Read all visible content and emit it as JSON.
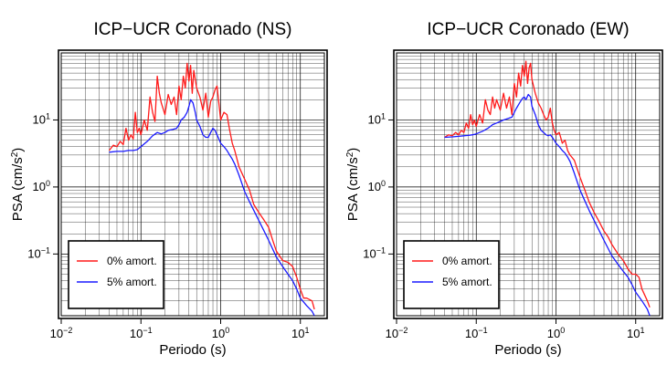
{
  "colors": {
    "undamped": "#ff1a1a",
    "damped": "#1a1aff",
    "grid": "#000000",
    "frame": "#000000"
  },
  "chart_data": [
    {
      "type": "line",
      "title": "ICP−UCR Coronado (NS)",
      "xlabel": "Periodo (s)",
      "ylabel_main": "PSA (cm/s",
      "ylabel_sup": "2",
      "ylabel_close": ")",
      "xscale": "log",
      "yscale": "log",
      "xlim": [
        0.01,
        20
      ],
      "ylim": [
        0.012,
        100
      ],
      "grid": true,
      "legend_position": "bottom-left",
      "x_ticks": [
        {
          "value": 0.01,
          "base": "10",
          "exp": "−2"
        },
        {
          "value": 0.1,
          "base": "10",
          "exp": "−1"
        },
        {
          "value": 1,
          "base": "10",
          "exp": "0"
        },
        {
          "value": 10,
          "base": "10",
          "exp": "1"
        }
      ],
      "y_ticks": [
        {
          "value": 0.1,
          "base": "10",
          "exp": "−1"
        },
        {
          "value": 1,
          "base": "10",
          "exp": "0"
        },
        {
          "value": 10,
          "base": "10",
          "exp": "1"
        }
      ],
      "series": [
        {
          "name": "0% amort.",
          "color": "#ff1a1a",
          "x": [
            0.04,
            0.045,
            0.05,
            0.055,
            0.06,
            0.065,
            0.07,
            0.075,
            0.08,
            0.085,
            0.09,
            0.095,
            0.1,
            0.11,
            0.12,
            0.13,
            0.14,
            0.15,
            0.16,
            0.17,
            0.18,
            0.2,
            0.22,
            0.24,
            0.26,
            0.28,
            0.3,
            0.32,
            0.34,
            0.36,
            0.38,
            0.4,
            0.42,
            0.44,
            0.46,
            0.48,
            0.5,
            0.55,
            0.6,
            0.65,
            0.7,
            0.75,
            0.8,
            0.85,
            0.9,
            0.95,
            1.0,
            1.1,
            1.2,
            1.3,
            1.4,
            1.5,
            1.7,
            2.0,
            2.3,
            2.6,
            3.0,
            3.5,
            4.0,
            4.5,
            5.0,
            6.0,
            7.0,
            8.0,
            9.0,
            10.0,
            11.0,
            12.0,
            14.0,
            15.0
          ],
          "y": [
            3.5,
            4.2,
            4.0,
            4.8,
            4.3,
            7.5,
            5.0,
            6.0,
            5.2,
            13.0,
            6.5,
            7.5,
            6.0,
            10.0,
            7.0,
            22.0,
            13.0,
            9.5,
            45.0,
            25.0,
            18.0,
            12.0,
            24.0,
            17.0,
            22.0,
            12.0,
            32.0,
            20.0,
            45.0,
            30.0,
            70.0,
            38.0,
            65.0,
            25.0,
            55.0,
            40.0,
            30.0,
            22.0,
            14.0,
            25.0,
            11.0,
            19.0,
            22.0,
            28.0,
            32.0,
            18.0,
            10.0,
            13.0,
            12.0,
            7.0,
            4.5,
            3.5,
            2.0,
            1.3,
            0.9,
            0.55,
            0.42,
            0.32,
            0.25,
            0.16,
            0.11,
            0.08,
            0.075,
            0.065,
            0.045,
            0.03,
            0.022,
            0.022,
            0.02,
            0.015
          ]
        },
        {
          "name": "5% amort.",
          "color": "#1a1aff",
          "x": [
            0.04,
            0.05,
            0.06,
            0.07,
            0.08,
            0.09,
            0.1,
            0.12,
            0.14,
            0.16,
            0.18,
            0.2,
            0.22,
            0.25,
            0.28,
            0.3,
            0.32,
            0.35,
            0.38,
            0.4,
            0.42,
            0.45,
            0.48,
            0.5,
            0.55,
            0.6,
            0.65,
            0.7,
            0.75,
            0.8,
            0.85,
            0.9,
            0.95,
            1.0,
            1.1,
            1.2,
            1.3,
            1.4,
            1.5,
            1.7,
            2.0,
            2.3,
            2.6,
            3.0,
            3.5,
            4.0,
            5.0,
            6.0,
            7.0,
            8.0,
            9.0,
            10.0,
            12.0,
            14.0,
            15.0
          ],
          "y": [
            3.3,
            3.4,
            3.4,
            3.5,
            3.5,
            3.6,
            4.0,
            4.8,
            5.8,
            6.5,
            6.2,
            6.5,
            7.0,
            7.2,
            7.5,
            8.5,
            10.0,
            11.0,
            13.0,
            16.0,
            20.0,
            18.0,
            13.0,
            10.0,
            8.0,
            6.0,
            5.5,
            5.5,
            6.5,
            7.5,
            7.0,
            6.0,
            5.2,
            4.5,
            4.0,
            3.5,
            3.0,
            2.6,
            2.2,
            1.5,
            0.85,
            0.6,
            0.45,
            0.32,
            0.22,
            0.16,
            0.09,
            0.065,
            0.05,
            0.04,
            0.03,
            0.022,
            0.017,
            0.014,
            0.012
          ]
        }
      ]
    },
    {
      "type": "line",
      "title": "ICP−UCR Coronado (EW)",
      "xlabel": "Periodo (s)",
      "ylabel_main": "PSA (cm/s",
      "ylabel_sup": "2",
      "ylabel_close": ")",
      "xscale": "log",
      "yscale": "log",
      "xlim": [
        0.01,
        20
      ],
      "ylim": [
        0.012,
        100
      ],
      "grid": true,
      "legend_position": "bottom-left",
      "x_ticks": [
        {
          "value": 0.01,
          "base": "10",
          "exp": "−2"
        },
        {
          "value": 0.1,
          "base": "10",
          "exp": "−1"
        },
        {
          "value": 1,
          "base": "10",
          "exp": "0"
        },
        {
          "value": 10,
          "base": "10",
          "exp": "1"
        }
      ],
      "y_ticks": [
        {
          "value": 0.1,
          "base": "10",
          "exp": "−1"
        },
        {
          "value": 1,
          "base": "10",
          "exp": "0"
        },
        {
          "value": 10,
          "base": "10",
          "exp": "1"
        }
      ],
      "series": [
        {
          "name": "0% amort.",
          "color": "#ff1a1a",
          "x": [
            0.04,
            0.045,
            0.05,
            0.055,
            0.06,
            0.065,
            0.07,
            0.075,
            0.08,
            0.085,
            0.09,
            0.095,
            0.1,
            0.11,
            0.12,
            0.13,
            0.14,
            0.15,
            0.16,
            0.17,
            0.18,
            0.2,
            0.22,
            0.24,
            0.26,
            0.28,
            0.3,
            0.32,
            0.34,
            0.36,
            0.38,
            0.4,
            0.42,
            0.44,
            0.46,
            0.48,
            0.5,
            0.55,
            0.6,
            0.65,
            0.7,
            0.75,
            0.8,
            0.85,
            0.9,
            0.95,
            1.0,
            1.1,
            1.2,
            1.3,
            1.4,
            1.5,
            1.7,
            2.0,
            2.3,
            2.6,
            3.0,
            3.5,
            4.0,
            4.5,
            5.0,
            6.0,
            7.0,
            8.0,
            9.0,
            10.0,
            11.0,
            12.0,
            14.0,
            15.0
          ],
          "y": [
            5.5,
            6.0,
            5.8,
            6.5,
            6.0,
            7.0,
            6.5,
            9.0,
            7.5,
            12.0,
            8.5,
            10.0,
            8.0,
            12.0,
            9.0,
            20.0,
            14.0,
            12.0,
            22.0,
            15.0,
            20.0,
            14.0,
            25.0,
            15.0,
            22.0,
            12.0,
            35.0,
            22.0,
            50.0,
            32.0,
            65.0,
            45.0,
            75.0,
            35.0,
            60.0,
            70.0,
            40.0,
            25.0,
            18.0,
            15.0,
            12.0,
            10.0,
            11.0,
            15.0,
            9.0,
            7.0,
            6.0,
            6.5,
            4.5,
            5.0,
            3.5,
            3.0,
            2.5,
            1.4,
            0.9,
            0.6,
            0.42,
            0.3,
            0.22,
            0.18,
            0.14,
            0.1,
            0.08,
            0.06,
            0.05,
            0.05,
            0.045,
            0.03,
            0.02,
            0.016
          ]
        },
        {
          "name": "5% amort.",
          "color": "#1a1aff",
          "x": [
            0.04,
            0.05,
            0.06,
            0.07,
            0.08,
            0.09,
            0.1,
            0.12,
            0.14,
            0.16,
            0.18,
            0.2,
            0.22,
            0.25,
            0.28,
            0.3,
            0.32,
            0.35,
            0.38,
            0.4,
            0.42,
            0.45,
            0.48,
            0.5,
            0.55,
            0.6,
            0.65,
            0.7,
            0.75,
            0.8,
            0.85,
            0.9,
            0.95,
            1.0,
            1.1,
            1.2,
            1.3,
            1.4,
            1.5,
            1.7,
            2.0,
            2.3,
            2.6,
            3.0,
            3.5,
            4.0,
            5.0,
            6.0,
            7.0,
            8.0,
            9.0,
            10.0,
            12.0,
            14.0,
            15.0
          ],
          "y": [
            5.5,
            5.6,
            5.7,
            5.8,
            5.9,
            6.0,
            6.2,
            6.8,
            7.5,
            8.5,
            9.0,
            9.5,
            10.0,
            10.5,
            11.0,
            13.0,
            15.0,
            18.0,
            21.0,
            22.0,
            20.0,
            24.0,
            22.0,
            16.0,
            12.0,
            8.5,
            7.0,
            6.5,
            6.0,
            5.8,
            6.0,
            5.5,
            5.0,
            4.5,
            4.0,
            3.5,
            3.2,
            2.8,
            2.4,
            1.6,
            0.9,
            0.62,
            0.45,
            0.32,
            0.22,
            0.16,
            0.095,
            0.07,
            0.055,
            0.045,
            0.035,
            0.027,
            0.02,
            0.015,
            0.012
          ]
        }
      ]
    }
  ]
}
